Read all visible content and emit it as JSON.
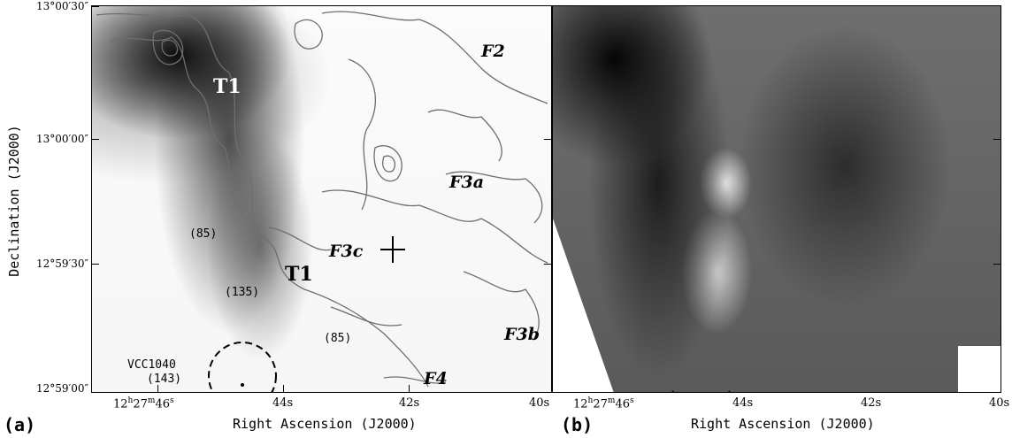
{
  "panel_a": {
    "letter": "(a)",
    "features": {
      "t1_top": "T1",
      "t1_bottom": "T1",
      "f2": "F2",
      "f3a": "F3a",
      "f3b": "F3b",
      "f3c": "F3c",
      "f4": "F4"
    },
    "velocities": {
      "v85_upper": "(85)",
      "v135": "(135)",
      "v85_lower": "(85)"
    },
    "galaxy_name": "VCC1040",
    "galaxy_velocity": "(143)"
  },
  "panel_b": {
    "letter": "(b)"
  },
  "axes": {
    "ylabel": "Declination (J2000)",
    "xlabel_a": "Right Ascension (J2000)",
    "xlabel_b": "Right Ascension (J2000)",
    "yticks": [
      "13°00′30″",
      "13°00′00″",
      "12°59′30″",
      "12°59′00″"
    ],
    "xticks_a": [
      "12h27m46s",
      "44s",
      "42s",
      "40s"
    ],
    "xticks_b": [
      "12h27m46s",
      "44s",
      "42s",
      "40s"
    ]
  }
}
